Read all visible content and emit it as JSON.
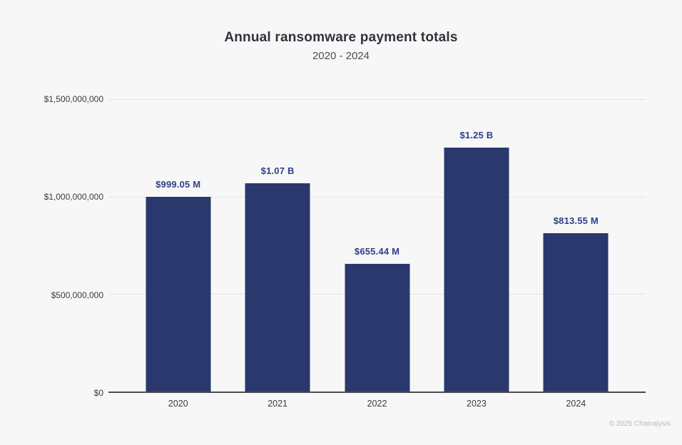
{
  "page": {
    "background": "#f7f7f8",
    "footer": "© 2025 Chainalysis"
  },
  "header": {
    "title": "Annual ransomware payment totals",
    "subtitle": "2020 - 2024"
  },
  "chart_data": {
    "type": "bar",
    "title": "Annual ransomware payment totals",
    "subtitle": "2020 - 2024",
    "xlabel": "",
    "ylabel": "",
    "categories": [
      "2020",
      "2021",
      "2022",
      "2023",
      "2024"
    ],
    "values": [
      999050000,
      1070000000,
      655440000,
      1250000000,
      813550000
    ],
    "value_labels": [
      "$999.05 M",
      "$1.07 B",
      "$655.44 M",
      "$1.25 B",
      "$813.55 M"
    ],
    "ylim": [
      0,
      1500000000
    ],
    "yticks": [
      {
        "value": 0,
        "label": "$0"
      },
      {
        "value": 500000000,
        "label": "$500,000,000"
      },
      {
        "value": 1000000000,
        "label": "$1,000,000,000"
      },
      {
        "value": 1500000000,
        "label": "$1,500,000,000"
      }
    ],
    "grid": "horizontal",
    "legend": "none",
    "bar_color": "#2a386e",
    "value_label_color": "#2f4186"
  }
}
